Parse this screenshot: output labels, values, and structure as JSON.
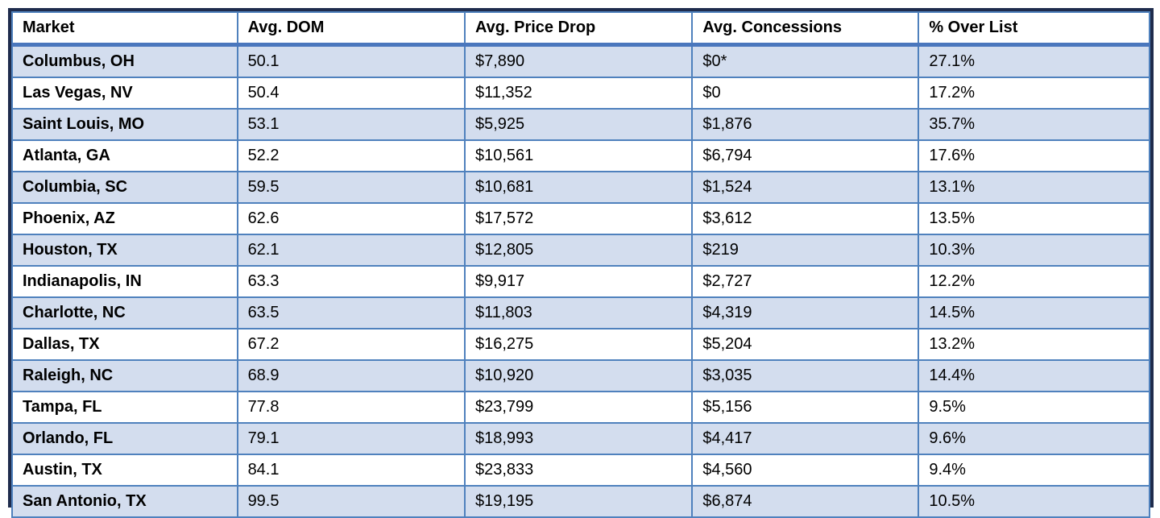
{
  "chart_data": {
    "type": "table",
    "columns": [
      "Market",
      "Avg. DOM",
      "Avg. Price Drop",
      "Avg. Concessions",
      "% Over List"
    ],
    "rows": [
      [
        "Columbus, OH",
        "50.1",
        "$7,890",
        "$0*",
        "27.1%"
      ],
      [
        "Las Vegas, NV",
        "50.4",
        "$11,352",
        "$0",
        "17.2%"
      ],
      [
        "Saint Louis, MO",
        "53.1",
        "$5,925",
        "$1,876",
        "35.7%"
      ],
      [
        "Atlanta, GA",
        "52.2",
        "$10,561",
        "$6,794",
        "17.6%"
      ],
      [
        "Columbia, SC",
        "59.5",
        "$10,681",
        "$1,524",
        "13.1%"
      ],
      [
        "Phoenix, AZ",
        "62.6",
        "$17,572",
        "$3,612",
        "13.5%"
      ],
      [
        "Houston, TX",
        "62.1",
        "$12,805",
        "$219",
        "10.3%"
      ],
      [
        "Indianapolis, IN",
        "63.3",
        "$9,917",
        "$2,727",
        "12.2%"
      ],
      [
        "Charlotte, NC",
        "63.5",
        "$11,803",
        "$4,319",
        "14.5%"
      ],
      [
        "Dallas, TX",
        "67.2",
        "$16,275",
        "$5,204",
        "13.2%"
      ],
      [
        "Raleigh, NC",
        "68.9",
        "$10,920",
        "$3,035",
        "14.4%"
      ],
      [
        "Tampa, FL",
        "77.8",
        "$23,799",
        "$5,156",
        "9.5%"
      ],
      [
        "Orlando, FL",
        "79.1",
        "$18,993",
        "$4,417",
        "9.6%"
      ],
      [
        "Austin, TX",
        "84.1",
        "$23,833",
        "$4,560",
        "9.4%"
      ],
      [
        "San Antonio, TX",
        "99.5",
        "$19,195",
        "$6,874",
        "10.5%"
      ]
    ],
    "layout_hints": {
      "banded_rows": true,
      "first_band_shaded": true,
      "header_background": "#ffffff"
    }
  },
  "colors": {
    "band_fill": "#d3ddee",
    "inner_border": "#4f81bd",
    "header_underline": "#4a77bd",
    "outer_border": "#1f2c4d",
    "text": "#000000"
  }
}
